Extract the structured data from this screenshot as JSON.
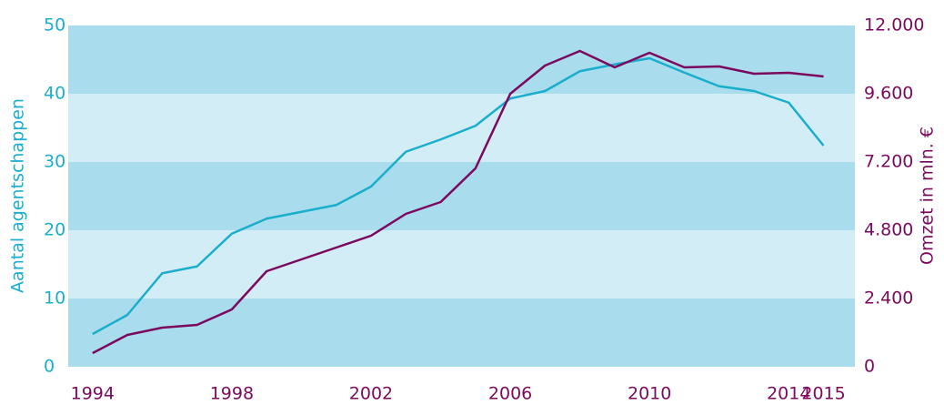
{
  "chart_data": {
    "type": "line",
    "x": [
      1994,
      1995,
      1996,
      1997,
      1998,
      1999,
      2000,
      2001,
      2002,
      2003,
      2004,
      2005,
      2006,
      2007,
      2008,
      2009,
      2010,
      2011,
      2012,
      2013,
      2014,
      2015
    ],
    "series": [
      {
        "name": "Aantal agentschappen",
        "color": "#1aaecc",
        "axis": "y",
        "values": [
          4.8,
          7.6,
          13.7,
          14.7,
          19.5,
          21.7,
          22.7,
          23.7,
          26.4,
          31.5,
          33.3,
          35.3,
          39.3,
          40.4,
          43.3,
          44.3,
          45.2,
          43.1,
          41.1,
          40.4,
          38.7,
          32.4
        ]
      },
      {
        "name": "Omzet in mln. €",
        "color": "#7b0a5e",
        "axis": "y2",
        "values": [
          480,
          1120,
          1376,
          1472,
          2016,
          3360,
          3776,
          4192,
          4608,
          5376,
          5792,
          6976,
          9600,
          10592,
          11104,
          10528,
          11040,
          10528,
          10560,
          10304,
          10336,
          10208
        ]
      }
    ],
    "xlim": [
      1993.3,
      2015.9
    ],
    "xticks": [
      1994,
      1998,
      2002,
      2006,
      2010,
      2014,
      2015
    ],
    "ylabel": "Aantal agentschappen",
    "y2label": "Omzet in mln. €",
    "ylim": [
      0,
      50
    ],
    "yticks": [
      0,
      10,
      20,
      30,
      40,
      50
    ],
    "y2lim": [
      0,
      12000
    ],
    "y2ticks": [
      0,
      {
        "value": 2400,
        "label": "2.400"
      },
      {
        "value": 4800,
        "label": "4.800"
      },
      {
        "value": 7200,
        "label": "7.200"
      },
      {
        "value": 9600,
        "label": "9.600"
      },
      {
        "value": 12000,
        "label": "12.000"
      }
    ],
    "band_colors": [
      "#a9dcec",
      "#d3edf6"
    ]
  }
}
